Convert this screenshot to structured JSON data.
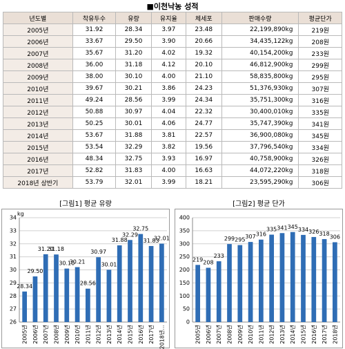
{
  "header": {
    "title": "■이천낙농 성적"
  },
  "table": {
    "columns": [
      "년도별",
      "착유두수",
      "유량",
      "유지율",
      "체세포",
      "판매수량",
      "평균단가"
    ],
    "rows": [
      [
        "2005년",
        "31.92",
        "28.34",
        "3.97",
        "23.48",
        "22,199,890kg",
        "219원"
      ],
      [
        "2006년",
        "33.67",
        "29.50",
        "3.90",
        "20.66",
        "34,435,122kg",
        "208원"
      ],
      [
        "2007년",
        "35.67",
        "31.20",
        "4.02",
        "19.32",
        "40,154,200kg",
        "233원"
      ],
      [
        "2008년",
        "36.00",
        "31.18",
        "4.12",
        "20.10",
        "46,812,900kg",
        "299원"
      ],
      [
        "2009년",
        "38.00",
        "30.10",
        "4.00",
        "21.10",
        "58,835,800kg",
        "295원"
      ],
      [
        "2010년",
        "39.67",
        "30.21",
        "3.86",
        "24.23",
        "51,376,930kg",
        "307원"
      ],
      [
        "2011년",
        "49.24",
        "28.56",
        "3.99",
        "24.34",
        "35,751,300kg",
        "316원"
      ],
      [
        "2012년",
        "50.88",
        "30.97",
        "4.04",
        "22.32",
        "30,400,010kg",
        "335원"
      ],
      [
        "2013년",
        "50.25",
        "30.01",
        "4.06",
        "24.77",
        "35,747,390kg",
        "341원"
      ],
      [
        "2014년",
        "53.67",
        "31.88",
        "3.81",
        "22.57",
        "36,900,080kg",
        "345원"
      ],
      [
        "2015년",
        "53.54",
        "32.29",
        "3.82",
        "19.56",
        "37,796,540kg",
        "334원"
      ],
      [
        "2016년",
        "48.34",
        "32.75",
        "3.93",
        "16.97",
        "40,758,900kg",
        "326원"
      ],
      [
        "2017년",
        "52.82",
        "31.83",
        "4.00",
        "16.63",
        "44,072,220kg",
        "318원"
      ],
      [
        "2018년 상반기",
        "53.79",
        "32.01",
        "3.99",
        "18.21",
        "23,595,290kg",
        "306원"
      ]
    ]
  },
  "chart_data": [
    {
      "type": "bar",
      "title": "[그림1] 평균 유량",
      "ylabel": "kg",
      "color": "#2f6db5",
      "grid": true,
      "categories": [
        "2005년",
        "2006년",
        "2007년",
        "2008년",
        "2009년",
        "2010년",
        "2011년",
        "2012년",
        "2013년",
        "2014년",
        "2015년",
        "2016년",
        "2017년",
        "2018년..."
      ],
      "values": [
        28.34,
        29.5,
        31.2,
        31.18,
        30.1,
        30.21,
        28.56,
        30.97,
        30.01,
        31.88,
        32.29,
        32.75,
        31.83,
        32.01
      ],
      "value_labels": [
        "28.34",
        "29.50",
        "31.20",
        "31.18",
        "30.10",
        "30.21",
        "28.56",
        "30.97",
        "30.01",
        "31.88",
        "32.29",
        "32.75",
        "31.83",
        "32.01"
      ],
      "ylim": [
        26,
        34
      ],
      "yticks": [
        26,
        27,
        28,
        29,
        30,
        31,
        32,
        33,
        34
      ]
    },
    {
      "type": "bar",
      "title": "[그림2] 평균 단가",
      "color": "#2f6db5",
      "grid": true,
      "categories": [
        "2005년",
        "2006년",
        "2007년",
        "2008년",
        "2009년",
        "2010년",
        "2011년",
        "2012년",
        "2013년",
        "2014년",
        "2015년",
        "2016년",
        "2017년",
        "2018년"
      ],
      "values": [
        219,
        208,
        233,
        299,
        295,
        307,
        316,
        335,
        341,
        345,
        334,
        326,
        318,
        306
      ],
      "ylim": [
        0,
        400
      ],
      "yticks": [
        0,
        50,
        100,
        150,
        200,
        250,
        300,
        350,
        400
      ]
    }
  ]
}
